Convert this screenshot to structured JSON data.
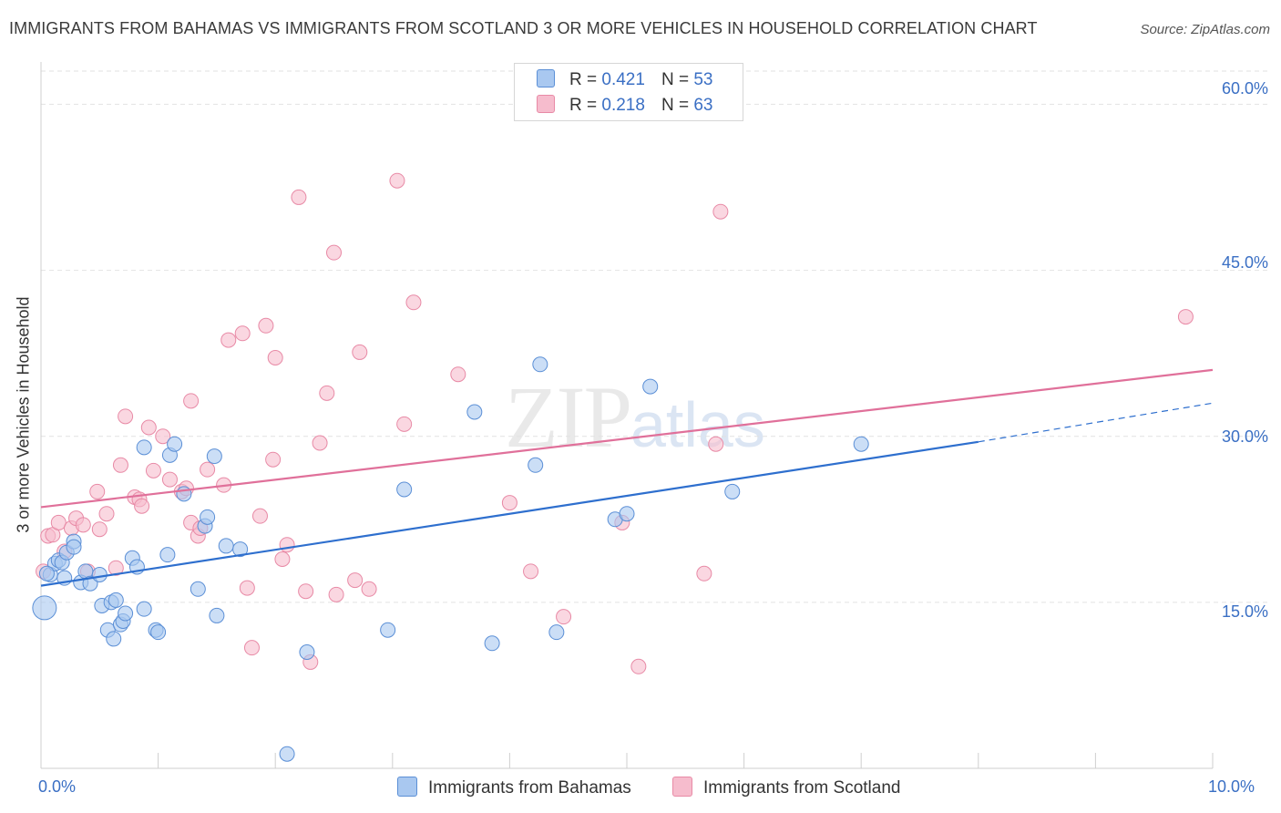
{
  "header": {
    "title": "IMMIGRANTS FROM BAHAMAS VS IMMIGRANTS FROM SCOTLAND 3 OR MORE VEHICLES IN HOUSEHOLD CORRELATION CHART",
    "source": "Source: ZipAtlas.com"
  },
  "watermark": {
    "zip": "ZIP",
    "atlas": "atlas"
  },
  "legend": {
    "rows": [
      {
        "r_label": "R =",
        "r_value": "0.421",
        "n_label": "N =",
        "n_value": "53"
      },
      {
        "r_label": "R =",
        "r_value": "0.218",
        "n_label": "N =",
        "n_value": "63"
      }
    ]
  },
  "bottom_legend": {
    "items": [
      {
        "label": "Immigrants from Bahamas"
      },
      {
        "label": "Immigrants from Scotland"
      }
    ]
  },
  "axes": {
    "ylabel": "3 or more Vehicles in Household",
    "x_ticks": [
      "0.0%",
      "10.0%"
    ],
    "y_ticks": [
      "60.0%",
      "45.0%",
      "30.0%",
      "15.0%"
    ]
  },
  "colors": {
    "bahamas_fill": "#a9c8f0",
    "bahamas_stroke": "#5b8fd6",
    "bahamas_line": "#2e6fce",
    "scotland_fill": "#f6bccd",
    "scotland_stroke": "#e88aa6",
    "scotland_line": "#e0709a",
    "tick_text": "#3a6fc4",
    "grid": "#e2e2e2"
  },
  "chart_data": {
    "type": "scatter",
    "title": "IMMIGRANTS FROM BAHAMAS VS IMMIGRANTS FROM SCOTLAND 3 OR MORE VEHICLES IN HOUSEHOLD CORRELATION CHART",
    "xlabel": "",
    "ylabel": "3 or more Vehicles in Household",
    "xlim": [
      0,
      10
    ],
    "ylim": [
      0,
      63
    ],
    "x_unit": "%",
    "y_unit": "%",
    "y_gridlines": [
      15,
      30,
      45,
      60
    ],
    "legend_position": "top-center",
    "series": [
      {
        "name": "Immigrants from Bahamas",
        "r": 0.421,
        "n": 53,
        "trend": {
          "x0": 0,
          "y0": 16.5,
          "x1": 8.0,
          "y1": 29.5,
          "dashed_to_x": 10.0,
          "dashed_to_y": 33.0
        },
        "points": [
          [
            0.03,
            14.5
          ],
          [
            0.08,
            17.5
          ],
          [
            0.12,
            18.5
          ],
          [
            0.15,
            18.8
          ],
          [
            0.18,
            18.6
          ],
          [
            0.2,
            17.2
          ],
          [
            0.22,
            19.5
          ],
          [
            0.28,
            20.5
          ],
          [
            0.28,
            20.0
          ],
          [
            0.34,
            16.8
          ],
          [
            0.38,
            17.8
          ],
          [
            0.42,
            16.7
          ],
          [
            0.5,
            17.5
          ],
          [
            0.52,
            14.7
          ],
          [
            0.57,
            12.5
          ],
          [
            0.62,
            11.7
          ],
          [
            0.6,
            15.0
          ],
          [
            0.64,
            15.2
          ],
          [
            0.68,
            13.0
          ],
          [
            0.7,
            13.3
          ],
          [
            0.72,
            14.0
          ],
          [
            0.78,
            19.0
          ],
          [
            0.82,
            18.2
          ],
          [
            0.88,
            14.4
          ],
          [
            0.88,
            29.0
          ],
          [
            0.98,
            12.5
          ],
          [
            1.0,
            12.3
          ],
          [
            1.08,
            19.3
          ],
          [
            1.1,
            28.3
          ],
          [
            1.14,
            29.3
          ],
          [
            1.22,
            24.8
          ],
          [
            1.34,
            16.2
          ],
          [
            1.4,
            21.9
          ],
          [
            1.42,
            22.7
          ],
          [
            1.48,
            28.2
          ],
          [
            1.5,
            13.8
          ],
          [
            1.58,
            20.1
          ],
          [
            1.7,
            19.8
          ],
          [
            2.1,
            1.3
          ],
          [
            2.27,
            10.5
          ],
          [
            2.96,
            12.5
          ],
          [
            3.1,
            25.2
          ],
          [
            3.7,
            32.2
          ],
          [
            3.85,
            11.3
          ],
          [
            4.22,
            27.4
          ],
          [
            4.26,
            36.5
          ],
          [
            4.4,
            12.3
          ],
          [
            4.9,
            22.5
          ],
          [
            5.0,
            23.0
          ],
          [
            5.2,
            34.5
          ],
          [
            5.9,
            25.0
          ],
          [
            7.0,
            29.3
          ],
          [
            0.05,
            17.6
          ]
        ]
      },
      {
        "name": "Immigrants from Scotland",
        "r": 0.218,
        "n": 63,
        "trend": {
          "x0": 0,
          "y0": 23.6,
          "x1": 10.0,
          "y1": 36.0
        },
        "points": [
          [
            0.02,
            17.8
          ],
          [
            0.06,
            21.0
          ],
          [
            0.1,
            21.1
          ],
          [
            0.15,
            22.2
          ],
          [
            0.2,
            19.6
          ],
          [
            0.26,
            21.7
          ],
          [
            0.3,
            22.6
          ],
          [
            0.36,
            22.0
          ],
          [
            0.4,
            17.8
          ],
          [
            0.48,
            25.0
          ],
          [
            0.5,
            21.6
          ],
          [
            0.56,
            23.0
          ],
          [
            0.64,
            18.1
          ],
          [
            0.68,
            27.4
          ],
          [
            0.72,
            31.8
          ],
          [
            0.8,
            24.5
          ],
          [
            0.84,
            24.3
          ],
          [
            0.86,
            23.7
          ],
          [
            0.92,
            30.8
          ],
          [
            0.96,
            26.9
          ],
          [
            1.04,
            30.0
          ],
          [
            1.1,
            26.1
          ],
          [
            1.2,
            25.0
          ],
          [
            1.24,
            25.3
          ],
          [
            1.28,
            22.2
          ],
          [
            1.34,
            21.0
          ],
          [
            1.36,
            21.7
          ],
          [
            1.42,
            27.0
          ],
          [
            1.28,
            33.2
          ],
          [
            1.56,
            25.6
          ],
          [
            1.6,
            38.7
          ],
          [
            1.72,
            39.3
          ],
          [
            1.76,
            16.3
          ],
          [
            1.8,
            10.9
          ],
          [
            1.87,
            22.8
          ],
          [
            1.92,
            40.0
          ],
          [
            1.98,
            27.9
          ],
          [
            2.0,
            37.1
          ],
          [
            2.06,
            18.9
          ],
          [
            2.1,
            20.2
          ],
          [
            2.2,
            51.6
          ],
          [
            2.26,
            16.0
          ],
          [
            2.3,
            9.6
          ],
          [
            2.38,
            29.4
          ],
          [
            2.44,
            33.9
          ],
          [
            2.5,
            46.6
          ],
          [
            2.52,
            15.7
          ],
          [
            2.68,
            17.0
          ],
          [
            2.72,
            37.6
          ],
          [
            2.8,
            16.2
          ],
          [
            3.1,
            31.1
          ],
          [
            3.18,
            42.1
          ],
          [
            3.04,
            53.1
          ],
          [
            3.56,
            35.6
          ],
          [
            4.0,
            24.0
          ],
          [
            4.18,
            17.8
          ],
          [
            4.46,
            13.7
          ],
          [
            4.96,
            22.2
          ],
          [
            5.1,
            9.2
          ],
          [
            5.66,
            17.6
          ],
          [
            5.76,
            29.3
          ],
          [
            5.8,
            50.3
          ],
          [
            9.77,
            40.8
          ]
        ]
      }
    ]
  }
}
